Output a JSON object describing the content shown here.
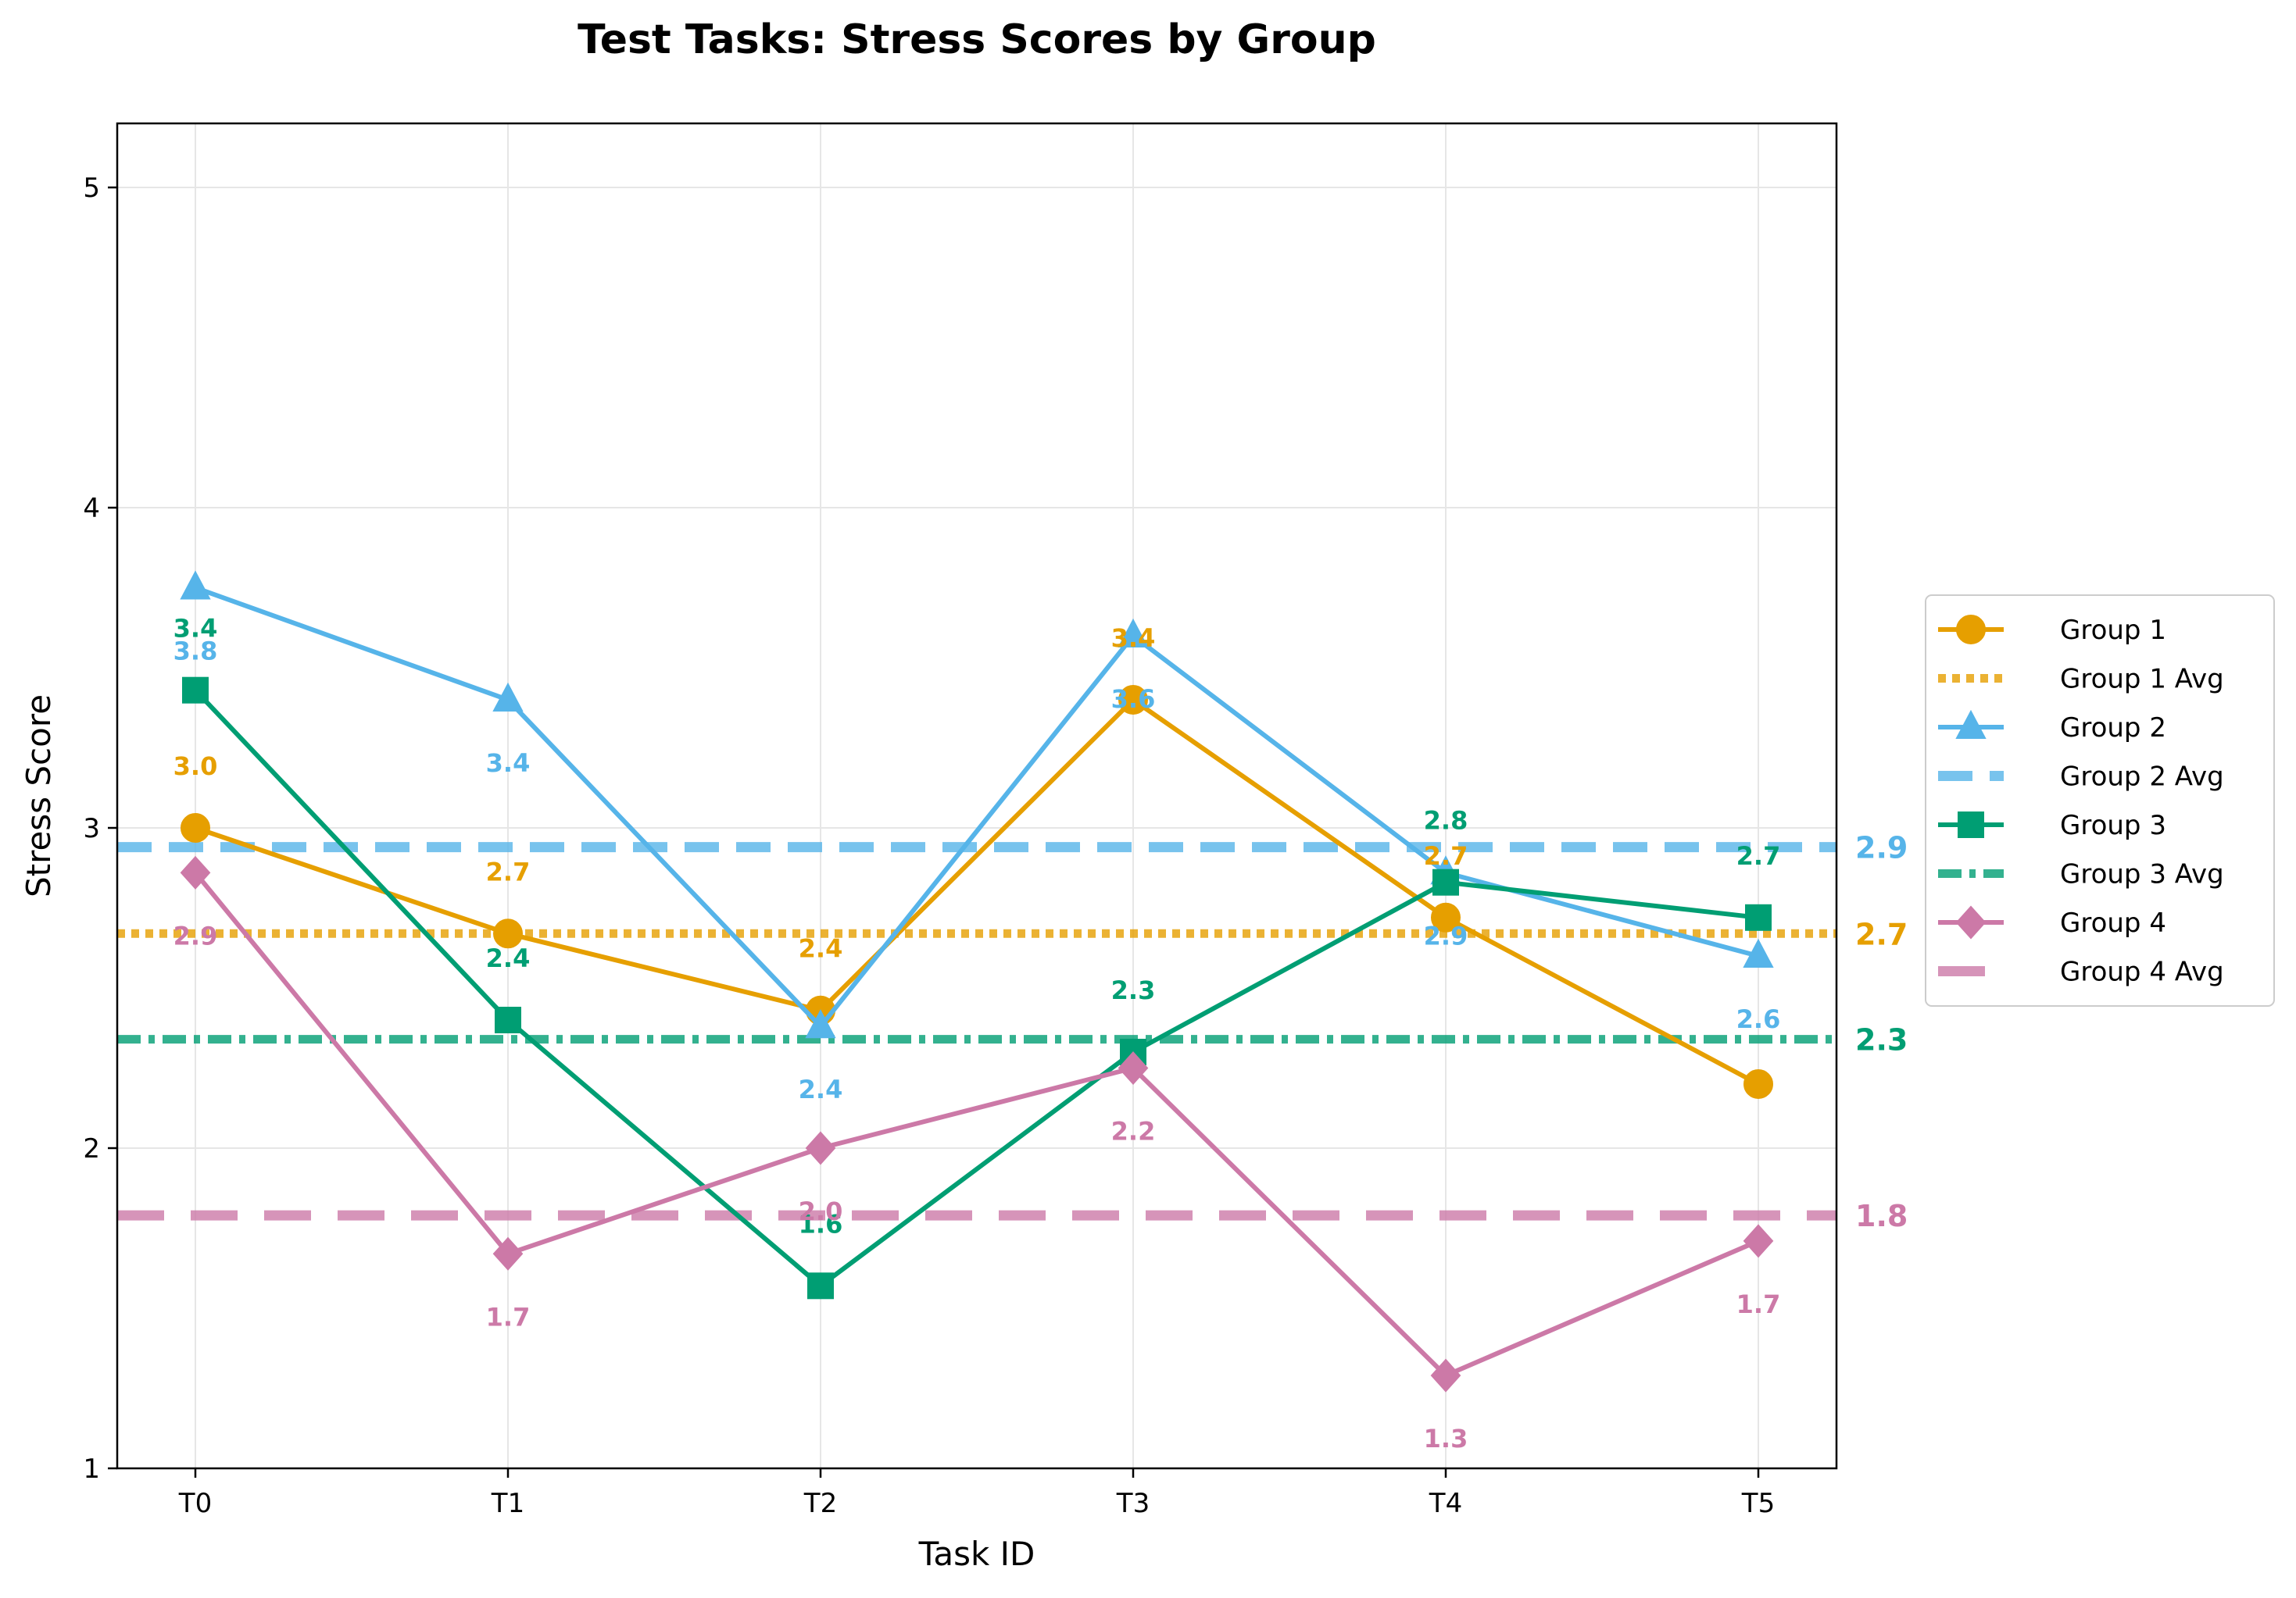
{
  "chart_data": {
    "type": "line",
    "title": "Test Tasks: Stress Scores by Group",
    "xlabel": "Task ID",
    "ylabel": "Stress Score",
    "categories": [
      "T0",
      "T1",
      "T2",
      "T3",
      "T4",
      "T5"
    ],
    "ylim": [
      1,
      5.2
    ],
    "yticks": [
      1,
      2,
      3,
      4,
      5
    ],
    "grid": true,
    "legend_position": "right",
    "series": [
      {
        "name": "Group 1",
        "color": "#E69F00",
        "marker": "circle",
        "values": [
          3.0,
          2.67,
          2.43,
          3.4,
          2.72,
          2.2
        ],
        "labels": [
          "3.0",
          "2.7",
          "2.4",
          "3.4",
          "2.7",
          ""
        ]
      },
      {
        "name": "Group 2",
        "color": "#56B4E9",
        "marker": "triangle",
        "values": [
          3.75,
          3.4,
          2.38,
          3.6,
          2.86,
          2.6
        ],
        "labels": [
          "3.8",
          "3.4",
          "2.4",
          "3.6",
          "2.9",
          "2.6"
        ]
      },
      {
        "name": "Group 3",
        "color": "#009E73",
        "marker": "square",
        "values": [
          3.43,
          2.4,
          1.57,
          2.3,
          2.83,
          2.72
        ],
        "labels": [
          "3.4",
          "2.4",
          "1.6",
          "2.3",
          "2.8",
          "2.7"
        ]
      },
      {
        "name": "Group 4",
        "color": "#CC79A7",
        "marker": "diamond",
        "values": [
          2.86,
          1.67,
          2.0,
          2.25,
          1.29,
          1.71
        ],
        "labels": [
          "2.9",
          "1.7",
          "2.0",
          "2.2",
          "1.3",
          "1.7"
        ]
      }
    ],
    "averages": [
      {
        "name": "Group 1 Avg",
        "color": "#E69F00",
        "style": "dotted",
        "value": 2.67,
        "label": "2.7"
      },
      {
        "name": "Group 2 Avg",
        "color": "#56B4E9",
        "style": "dashed",
        "value": 2.94,
        "label": "2.9"
      },
      {
        "name": "Group 3 Avg",
        "color": "#009E73",
        "style": "dashdot",
        "value": 2.34,
        "label": "2.3"
      },
      {
        "name": "Group 4 Avg",
        "color": "#CC79A7",
        "style": "longdash",
        "value": 1.79,
        "label": "1.8"
      }
    ]
  }
}
